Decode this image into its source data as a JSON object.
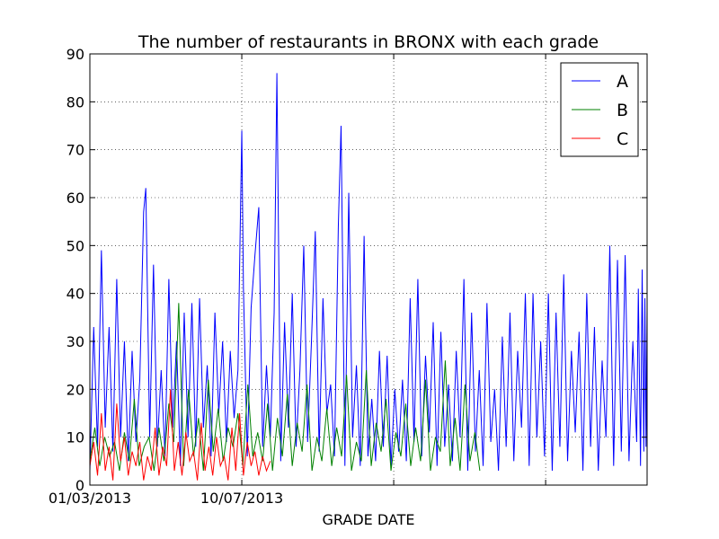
{
  "chart_data": {
    "type": "line",
    "title": "The number of restaurants in BRONX with each grade",
    "xlabel": "GRADE DATE",
    "ylabel": "",
    "x_type": "date",
    "xlim": [
      "2013-01-03",
      "2015-10-16"
    ],
    "ylim": [
      0,
      90
    ],
    "x_ticks": [
      {
        "date": "2013-01-03",
        "label": "01/03/2013"
      },
      {
        "date": "2013-10-07",
        "label": "10/07/2013"
      },
      {
        "date": "2014-07-11",
        "label": ""
      },
      {
        "date": "2015-04-14",
        "label": ""
      }
    ],
    "y_ticks": [
      0,
      10,
      20,
      30,
      40,
      50,
      60,
      70,
      80,
      90
    ],
    "grid": true,
    "legend_position": "top-right",
    "series": [
      {
        "name": "A",
        "color": "#0000ff",
        "points": [
          [
            "2013-01-03",
            3
          ],
          [
            "2013-01-10",
            33
          ],
          [
            "2013-01-17",
            8
          ],
          [
            "2013-01-24",
            49
          ],
          [
            "2013-01-31",
            12
          ],
          [
            "2013-02-07",
            33
          ],
          [
            "2013-02-14",
            7
          ],
          [
            "2013-02-21",
            43
          ],
          [
            "2013-02-28",
            10
          ],
          [
            "2013-03-07",
            30
          ],
          [
            "2013-03-14",
            5
          ],
          [
            "2013-03-21",
            28
          ],
          [
            "2013-03-28",
            9
          ],
          [
            "2013-04-04",
            22
          ],
          [
            "2013-04-11",
            57
          ],
          [
            "2013-04-15",
            62
          ],
          [
            "2013-04-22",
            10
          ],
          [
            "2013-04-29",
            46
          ],
          [
            "2013-05-06",
            8
          ],
          [
            "2013-05-13",
            24
          ],
          [
            "2013-05-20",
            6
          ],
          [
            "2013-05-27",
            43
          ],
          [
            "2013-06-03",
            12
          ],
          [
            "2013-06-10",
            30
          ],
          [
            "2013-06-17",
            4
          ],
          [
            "2013-06-24",
            36
          ],
          [
            "2013-07-01",
            10
          ],
          [
            "2013-07-08",
            38
          ],
          [
            "2013-07-15",
            8
          ],
          [
            "2013-07-22",
            39
          ],
          [
            "2013-07-29",
            12
          ],
          [
            "2013-08-05",
            25
          ],
          [
            "2013-08-12",
            6
          ],
          [
            "2013-08-19",
            36
          ],
          [
            "2013-08-26",
            15
          ],
          [
            "2013-09-02",
            30
          ],
          [
            "2013-09-09",
            9
          ],
          [
            "2013-09-16",
            28
          ],
          [
            "2013-09-23",
            14
          ],
          [
            "2013-09-30",
            24
          ],
          [
            "2013-10-07",
            74
          ],
          [
            "2013-10-10",
            41
          ],
          [
            "2013-10-17",
            6
          ],
          [
            "2013-10-24",
            37
          ],
          [
            "2013-10-31",
            48
          ],
          [
            "2013-11-07",
            58
          ],
          [
            "2013-11-14",
            8
          ],
          [
            "2013-11-21",
            25
          ],
          [
            "2013-11-28",
            10
          ],
          [
            "2013-12-05",
            36
          ],
          [
            "2013-12-10",
            86
          ],
          [
            "2013-12-17",
            5
          ],
          [
            "2013-12-24",
            34
          ],
          [
            "2013-12-31",
            12
          ],
          [
            "2014-01-07",
            40
          ],
          [
            "2014-01-14",
            8
          ],
          [
            "2014-01-21",
            24
          ],
          [
            "2014-01-28",
            50
          ],
          [
            "2014-02-04",
            9
          ],
          [
            "2014-02-11",
            30
          ],
          [
            "2014-02-18",
            53
          ],
          [
            "2014-02-25",
            7
          ],
          [
            "2014-03-04",
            39
          ],
          [
            "2014-03-11",
            15
          ],
          [
            "2014-03-18",
            21
          ],
          [
            "2014-03-25",
            6
          ],
          [
            "2014-04-01",
            54
          ],
          [
            "2014-04-06",
            75
          ],
          [
            "2014-04-13",
            4
          ],
          [
            "2014-04-20",
            61
          ],
          [
            "2014-04-27",
            10
          ],
          [
            "2014-05-04",
            25
          ],
          [
            "2014-05-11",
            4
          ],
          [
            "2014-05-18",
            52
          ],
          [
            "2014-05-25",
            6
          ],
          [
            "2014-06-01",
            18
          ],
          [
            "2014-06-08",
            5
          ],
          [
            "2014-06-15",
            28
          ],
          [
            "2014-06-22",
            8
          ],
          [
            "2014-06-29",
            27
          ],
          [
            "2014-07-06",
            4
          ],
          [
            "2014-07-13",
            20
          ],
          [
            "2014-07-20",
            7
          ],
          [
            "2014-07-27",
            22
          ],
          [
            "2014-08-03",
            5
          ],
          [
            "2014-08-10",
            39
          ],
          [
            "2014-08-17",
            9
          ],
          [
            "2014-08-24",
            43
          ],
          [
            "2014-08-31",
            6
          ],
          [
            "2014-09-07",
            27
          ],
          [
            "2014-09-14",
            11
          ],
          [
            "2014-09-21",
            34
          ],
          [
            "2014-09-28",
            4
          ],
          [
            "2014-10-05",
            32
          ],
          [
            "2014-10-12",
            8
          ],
          [
            "2014-10-19",
            21
          ],
          [
            "2014-10-26",
            5
          ],
          [
            "2014-11-02",
            28
          ],
          [
            "2014-11-09",
            10
          ],
          [
            "2014-11-16",
            43
          ],
          [
            "2014-11-23",
            3
          ],
          [
            "2014-11-30",
            36
          ],
          [
            "2014-12-07",
            7
          ],
          [
            "2014-12-14",
            24
          ],
          [
            "2014-12-21",
            4
          ],
          [
            "2014-12-28",
            38
          ],
          [
            "2015-01-04",
            9
          ],
          [
            "2015-01-11",
            20
          ],
          [
            "2015-01-18",
            3
          ],
          [
            "2015-01-25",
            31
          ],
          [
            "2015-02-01",
            8
          ],
          [
            "2015-02-08",
            36
          ],
          [
            "2015-02-15",
            5
          ],
          [
            "2015-02-22",
            28
          ],
          [
            "2015-03-01",
            12
          ],
          [
            "2015-03-08",
            40
          ],
          [
            "2015-03-15",
            4
          ],
          [
            "2015-03-22",
            40
          ],
          [
            "2015-03-29",
            10
          ],
          [
            "2015-04-05",
            30
          ],
          [
            "2015-04-12",
            6
          ],
          [
            "2015-04-19",
            40
          ],
          [
            "2015-04-26",
            3
          ],
          [
            "2015-05-03",
            36
          ],
          [
            "2015-05-10",
            8
          ],
          [
            "2015-05-17",
            44
          ],
          [
            "2015-05-24",
            5
          ],
          [
            "2015-05-31",
            28
          ],
          [
            "2015-06-07",
            11
          ],
          [
            "2015-06-14",
            32
          ],
          [
            "2015-06-21",
            3
          ],
          [
            "2015-06-28",
            40
          ],
          [
            "2015-07-05",
            8
          ],
          [
            "2015-07-12",
            33
          ],
          [
            "2015-07-19",
            3
          ],
          [
            "2015-07-26",
            26
          ],
          [
            "2015-08-02",
            10
          ],
          [
            "2015-08-09",
            50
          ],
          [
            "2015-08-16",
            4
          ],
          [
            "2015-08-23",
            47
          ],
          [
            "2015-08-30",
            7
          ],
          [
            "2015-09-06",
            48
          ],
          [
            "2015-09-13",
            5
          ],
          [
            "2015-09-20",
            30
          ],
          [
            "2015-09-27",
            9
          ],
          [
            "2015-09-30",
            41
          ],
          [
            "2015-10-04",
            4
          ],
          [
            "2015-10-07",
            45
          ],
          [
            "2015-10-10",
            7
          ],
          [
            "2015-10-12",
            39
          ],
          [
            "2015-10-14",
            8
          ],
          [
            "2015-10-16",
            37
          ]
        ]
      },
      {
        "name": "B",
        "color": "#008000",
        "points": [
          [
            "2013-01-03",
            5
          ],
          [
            "2013-01-12",
            12
          ],
          [
            "2013-01-21",
            4
          ],
          [
            "2013-01-30",
            10
          ],
          [
            "2013-02-08",
            6
          ],
          [
            "2013-02-17",
            9
          ],
          [
            "2013-02-26",
            3
          ],
          [
            "2013-03-07",
            11
          ],
          [
            "2013-03-16",
            5
          ],
          [
            "2013-03-25",
            18
          ],
          [
            "2013-04-03",
            4
          ],
          [
            "2013-04-12",
            8
          ],
          [
            "2013-04-21",
            10
          ],
          [
            "2013-04-30",
            3
          ],
          [
            "2013-05-09",
            12
          ],
          [
            "2013-05-18",
            5
          ],
          [
            "2013-05-27",
            17
          ],
          [
            "2013-06-05",
            9
          ],
          [
            "2013-06-14",
            38
          ],
          [
            "2013-06-23",
            4
          ],
          [
            "2013-07-02",
            20
          ],
          [
            "2013-07-11",
            6
          ],
          [
            "2013-07-20",
            14
          ],
          [
            "2013-07-29",
            3
          ],
          [
            "2013-08-07",
            22
          ],
          [
            "2013-08-16",
            7
          ],
          [
            "2013-08-25",
            16
          ],
          [
            "2013-09-03",
            5
          ],
          [
            "2013-09-12",
            12
          ],
          [
            "2013-09-21",
            8
          ],
          [
            "2013-09-30",
            15
          ],
          [
            "2013-10-09",
            4
          ],
          [
            "2013-10-18",
            21
          ],
          [
            "2013-10-27",
            6
          ],
          [
            "2013-11-05",
            11
          ],
          [
            "2013-11-14",
            5
          ],
          [
            "2013-11-23",
            17
          ],
          [
            "2013-12-02",
            3
          ],
          [
            "2013-12-11",
            14
          ],
          [
            "2013-12-20",
            6
          ],
          [
            "2013-12-29",
            19
          ],
          [
            "2014-01-07",
            4
          ],
          [
            "2014-01-16",
            13
          ],
          [
            "2014-01-25",
            7
          ],
          [
            "2014-02-03",
            21
          ],
          [
            "2014-02-12",
            3
          ],
          [
            "2014-02-21",
            10
          ],
          [
            "2014-03-02",
            5
          ],
          [
            "2014-03-11",
            16
          ],
          [
            "2014-03-20",
            4
          ],
          [
            "2014-03-29",
            12
          ],
          [
            "2014-04-07",
            6
          ],
          [
            "2014-04-16",
            23
          ],
          [
            "2014-04-25",
            3
          ],
          [
            "2014-05-04",
            9
          ],
          [
            "2014-05-13",
            5
          ],
          [
            "2014-05-22",
            24
          ],
          [
            "2014-05-31",
            4
          ],
          [
            "2014-06-09",
            13
          ],
          [
            "2014-06-18",
            7
          ],
          [
            "2014-06-27",
            18
          ],
          [
            "2014-07-06",
            3
          ],
          [
            "2014-07-15",
            11
          ],
          [
            "2014-07-24",
            6
          ],
          [
            "2014-08-02",
            17
          ],
          [
            "2014-08-11",
            4
          ],
          [
            "2014-08-20",
            12
          ],
          [
            "2014-08-29",
            5
          ],
          [
            "2014-09-07",
            22
          ],
          [
            "2014-09-16",
            3
          ],
          [
            "2014-09-25",
            10
          ],
          [
            "2014-10-04",
            7
          ],
          [
            "2014-10-13",
            26
          ],
          [
            "2014-10-22",
            4
          ],
          [
            "2014-10-31",
            14
          ],
          [
            "2014-11-09",
            3
          ],
          [
            "2014-11-18",
            21
          ],
          [
            "2014-11-27",
            5
          ],
          [
            "2014-12-06",
            11
          ],
          [
            "2014-12-15",
            3
          ]
        ]
      },
      {
        "name": "C",
        "color": "#ff0000",
        "points": [
          [
            "2013-01-03",
            4
          ],
          [
            "2013-01-10",
            9
          ],
          [
            "2013-01-17",
            2
          ],
          [
            "2013-01-24",
            15
          ],
          [
            "2013-01-31",
            3
          ],
          [
            "2013-02-07",
            8
          ],
          [
            "2013-02-14",
            1
          ],
          [
            "2013-02-21",
            17
          ],
          [
            "2013-02-28",
            5
          ],
          [
            "2013-03-07",
            10
          ],
          [
            "2013-03-14",
            2
          ],
          [
            "2013-03-21",
            7
          ],
          [
            "2013-03-28",
            4
          ],
          [
            "2013-04-04",
            9
          ],
          [
            "2013-04-11",
            1
          ],
          [
            "2013-04-18",
            6
          ],
          [
            "2013-04-25",
            3
          ],
          [
            "2013-05-02",
            12
          ],
          [
            "2013-05-09",
            2
          ],
          [
            "2013-05-16",
            8
          ],
          [
            "2013-05-23",
            4
          ],
          [
            "2013-05-30",
            20
          ],
          [
            "2013-06-06",
            3
          ],
          [
            "2013-06-13",
            9
          ],
          [
            "2013-06-20",
            2
          ],
          [
            "2013-06-27",
            11
          ],
          [
            "2013-07-04",
            5
          ],
          [
            "2013-07-11",
            7
          ],
          [
            "2013-07-18",
            1
          ],
          [
            "2013-07-25",
            13
          ],
          [
            "2013-08-01",
            3
          ],
          [
            "2013-08-08",
            8
          ],
          [
            "2013-08-15",
            2
          ],
          [
            "2013-08-22",
            10
          ],
          [
            "2013-08-29",
            4
          ],
          [
            "2013-09-05",
            6
          ],
          [
            "2013-09-12",
            1
          ],
          [
            "2013-09-19",
            12
          ],
          [
            "2013-09-26",
            3
          ],
          [
            "2013-10-03",
            15
          ],
          [
            "2013-10-10",
            2
          ],
          [
            "2013-10-17",
            9
          ],
          [
            "2013-10-24",
            4
          ],
          [
            "2013-10-31",
            7
          ],
          [
            "2013-11-07",
            2
          ],
          [
            "2013-11-14",
            6
          ],
          [
            "2013-11-21",
            3
          ],
          [
            "2013-11-28",
            5
          ]
        ]
      }
    ]
  }
}
